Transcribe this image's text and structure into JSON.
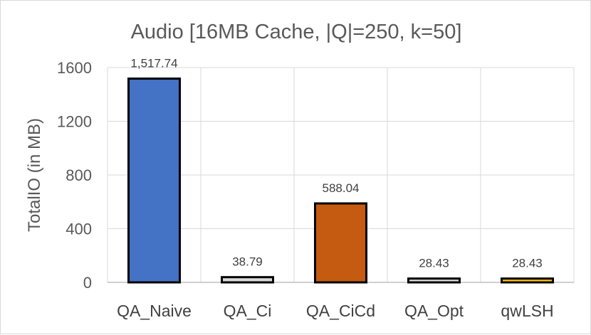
{
  "chart_data": {
    "type": "bar",
    "title": "Audio [16MB Cache, |Q|=250, k=50]",
    "xlabel": "",
    "ylabel": "TotalIO (in MB)",
    "ylim": [
      0,
      1600
    ],
    "yticks": [
      0,
      400,
      800,
      1200,
      1600
    ],
    "ytick_labels": [
      "0",
      "400",
      "800",
      "1200",
      "1600"
    ],
    "categories": [
      "QA_Naive",
      "QA_Ci",
      "QA_CiCd",
      "QA_Opt",
      "qwLSH"
    ],
    "values": [
      1517.74,
      38.79,
      588.04,
      28.43,
      28.43
    ],
    "data_labels": [
      "1,517.74",
      "38.79",
      "588.04",
      "28.43",
      "28.43"
    ],
    "colors": [
      "#4472c4",
      "#d9d9d9",
      "#c55a11",
      "#d9d9d9",
      "#ffc000"
    ],
    "bar_outline": "#000000",
    "grid": true,
    "gridlines": "vertical-and-horizontal",
    "legend": "none"
  }
}
